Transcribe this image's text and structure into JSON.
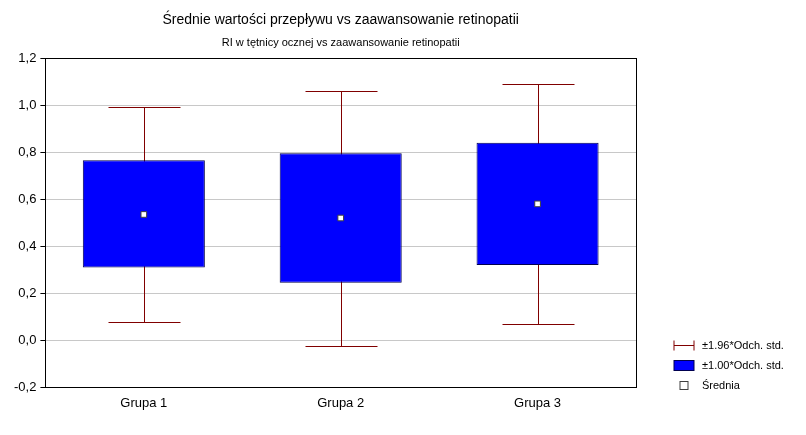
{
  "chart_data": {
    "type": "box",
    "title": "Średnie wartości przepływu vs zaawansowanie retinopatii",
    "subtitle": "RI w tętnicy ocznej vs zaawansowanie retinopatii",
    "categories": [
      "Grupa 1",
      "Grupa 2",
      "Grupa 3"
    ],
    "series": [
      {
        "name": "±1.96*Odch. std.",
        "type": "whisker",
        "color": "#800000",
        "low": [
          0.08,
          -0.025,
          0.07
        ],
        "high": [
          0.99,
          1.06,
          1.09
        ]
      },
      {
        "name": "±1.00*Odch. std.",
        "type": "box",
        "color": "#0000ff",
        "low": [
          0.31,
          0.245,
          0.32
        ],
        "high": [
          0.765,
          0.795,
          0.84
        ]
      },
      {
        "name": "Średnia",
        "type": "point",
        "marker": "square",
        "color": "#ffffff",
        "values": [
          0.535,
          0.52,
          0.58
        ]
      }
    ],
    "ylim": [
      -0.2,
      1.2
    ],
    "yticks": [
      {
        "value": -0.2,
        "label": "-0,2"
      },
      {
        "value": 0,
        "label": "0,0"
      },
      {
        "value": 0.2,
        "label": "0,2"
      },
      {
        "value": 0.4,
        "label": "0,4"
      },
      {
        "value": 0.6,
        "label": "0,6"
      },
      {
        "value": 0.8,
        "label": "0,8"
      },
      {
        "value": 1.0,
        "label": "1,0"
      },
      {
        "value": 1.2,
        "label": "1,2"
      }
    ],
    "grid": true,
    "legend": "right"
  }
}
